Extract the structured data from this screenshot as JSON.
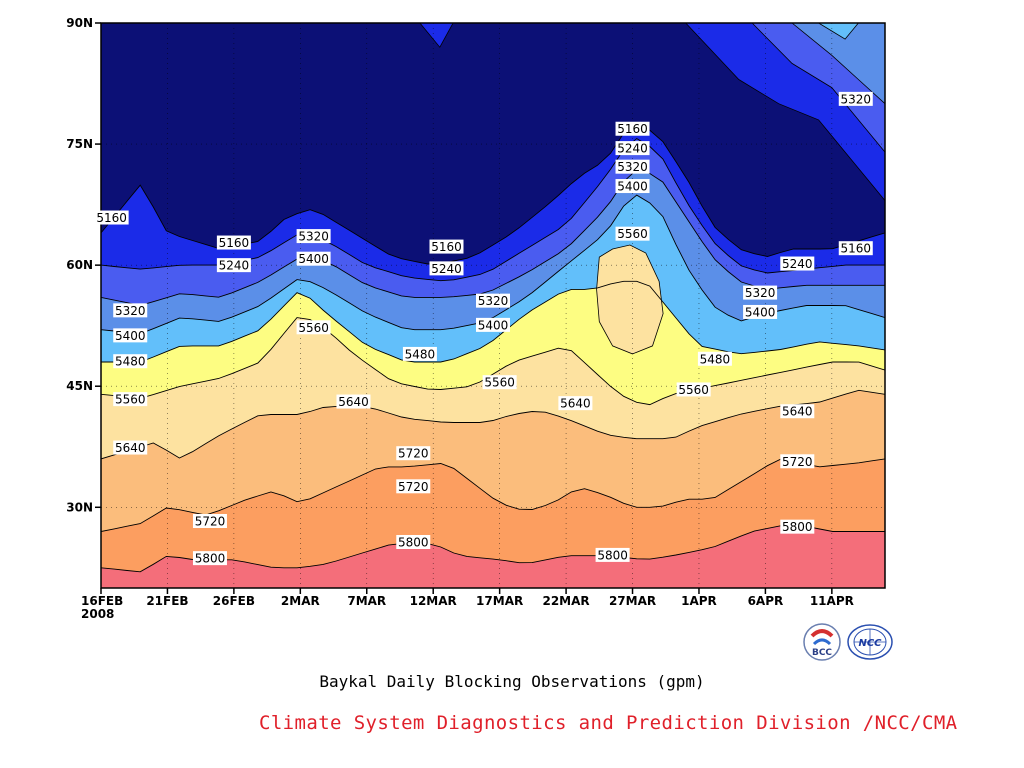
{
  "chart_data": {
    "type": "contour",
    "xlabel": "",
    "ylabel": "",
    "x_ticks": [
      "16FEB\n2008",
      "21FEB",
      "26FEB",
      "2MAR",
      "7MAR",
      "12MAR",
      "17MAR",
      "22MAR",
      "27MAR",
      "1APR",
      "6APR",
      "11APR"
    ],
    "y_ticks": [
      "30N",
      "45N",
      "60N",
      "75N",
      "90N"
    ],
    "ylim": [
      20,
      90
    ],
    "x_range_days": [
      0,
      59
    ],
    "contour_levels": [
      5160,
      5240,
      5320,
      5400,
      5480,
      5560,
      5640,
      5720,
      5800
    ],
    "contour_labels": [
      {
        "day": 0.8,
        "lat": 65.9,
        "text": "5160"
      },
      {
        "day": 10,
        "lat": 62.8,
        "text": "5160"
      },
      {
        "day": 16,
        "lat": 63.6,
        "text": "5320"
      },
      {
        "day": 16,
        "lat": 60.8,
        "text": "5400"
      },
      {
        "day": 10,
        "lat": 60,
        "text": "5240"
      },
      {
        "day": 2.2,
        "lat": 54.4,
        "text": "5320"
      },
      {
        "day": 2.2,
        "lat": 51.3,
        "text": "5400"
      },
      {
        "day": 2.2,
        "lat": 48.1,
        "text": "5480"
      },
      {
        "day": 16,
        "lat": 52.3,
        "text": "5560"
      },
      {
        "day": 2.2,
        "lat": 43.4,
        "text": "5560"
      },
      {
        "day": 2.2,
        "lat": 37.4,
        "text": "5640"
      },
      {
        "day": 19,
        "lat": 43.1,
        "text": "5640"
      },
      {
        "day": 26,
        "lat": 62.3,
        "text": "5160"
      },
      {
        "day": 26,
        "lat": 59.6,
        "text": "5240"
      },
      {
        "day": 29.5,
        "lat": 55.6,
        "text": "5320"
      },
      {
        "day": 29.5,
        "lat": 52.6,
        "text": "5400"
      },
      {
        "day": 24,
        "lat": 49,
        "text": "5480"
      },
      {
        "day": 30,
        "lat": 45.5,
        "text": "5560"
      },
      {
        "day": 35.7,
        "lat": 42.9,
        "text": "5640"
      },
      {
        "day": 23.5,
        "lat": 36.7,
        "text": "5720"
      },
      {
        "day": 8.2,
        "lat": 28.3,
        "text": "5720"
      },
      {
        "day": 23.5,
        "lat": 32.6,
        "text": "5720"
      },
      {
        "day": 8.2,
        "lat": 23.7,
        "text": "5800"
      },
      {
        "day": 23.5,
        "lat": 25.7,
        "text": "5800"
      },
      {
        "day": 38.5,
        "lat": 24.1,
        "text": "5800"
      },
      {
        "day": 40,
        "lat": 76.9,
        "text": "5160"
      },
      {
        "day": 40,
        "lat": 74.5,
        "text": "5240"
      },
      {
        "day": 40,
        "lat": 72.2,
        "text": "5320"
      },
      {
        "day": 40,
        "lat": 69.8,
        "text": "5400"
      },
      {
        "day": 40,
        "lat": 63.9,
        "text": "5560"
      },
      {
        "day": 46.2,
        "lat": 48.4,
        "text": "5480"
      },
      {
        "day": 44.6,
        "lat": 44.6,
        "text": "5560"
      },
      {
        "day": 49.6,
        "lat": 56.6,
        "text": "5320"
      },
      {
        "day": 49.6,
        "lat": 54.2,
        "text": "5400"
      },
      {
        "day": 52.4,
        "lat": 60.2,
        "text": "5240"
      },
      {
        "day": 52.4,
        "lat": 41.9,
        "text": "5640"
      },
      {
        "day": 52.4,
        "lat": 35.7,
        "text": "5720"
      },
      {
        "day": 52.4,
        "lat": 27.6,
        "text": "5800"
      },
      {
        "day": 56.8,
        "lat": 62.1,
        "text": "5160"
      },
      {
        "day": 56.8,
        "lat": 80.6,
        "text": "5320"
      }
    ],
    "fill_colors": {
      "lt5160": "#0c1076",
      "5160": "#1b2be8",
      "5240": "#4a5cf0",
      "5320": "#5b8fe8",
      "5400": "#62bffa",
      "5480": "#fdfd82",
      "5560": "#fde2a0",
      "5640": "#fbbd7c",
      "5720": "#fc9e60",
      "5800": "#fc7c48",
      "gt5800": "#f46e7a"
    }
  },
  "subtitle": "Baykal Daily Blocking Observations (gpm)",
  "credit": "Climate System Diagnostics and Prediction Division /NCC/CMA",
  "logos": [
    {
      "icon": "bcc-logo",
      "text": "BCC"
    },
    {
      "icon": "ncc-logo",
      "text": "NCC"
    }
  ]
}
